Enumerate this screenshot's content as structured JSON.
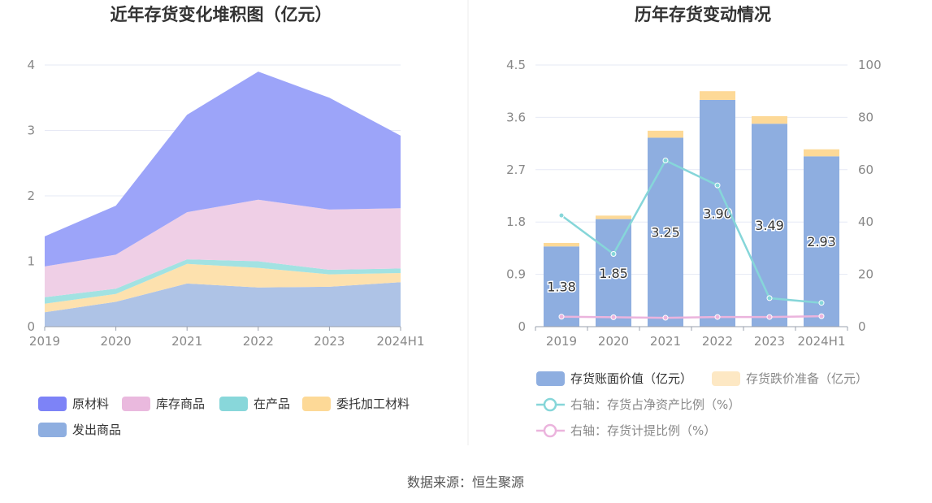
{
  "source": "数据来源：恒生聚源",
  "chart_data": [
    {
      "type": "area",
      "title": "近年存货变化堆积图（亿元）",
      "stacked": true,
      "categories": [
        "2019",
        "2020",
        "2021",
        "2022",
        "2023",
        "2024H1"
      ],
      "ylim": [
        0,
        4
      ],
      "yticks": [
        "0",
        "1",
        "2",
        "3",
        "4"
      ],
      "grid": true,
      "legend_position": "bottom",
      "series": [
        {
          "name": "发出商品",
          "color": "#aec3e6",
          "legend_color": "#8eaee0",
          "values": [
            0.22,
            0.38,
            0.66,
            0.6,
            0.61,
            0.68
          ]
        },
        {
          "name": "委托加工材料",
          "color": "#fde1ae",
          "legend_color": "#fdd997",
          "values": [
            0.13,
            0.12,
            0.3,
            0.3,
            0.19,
            0.14
          ]
        },
        {
          "name": "在产品",
          "color": "#a2e2e2",
          "legend_color": "#88d7da",
          "values": [
            0.1,
            0.08,
            0.07,
            0.1,
            0.07,
            0.07
          ]
        },
        {
          "name": "库存商品",
          "color": "#efcfe6",
          "legend_color": "#eab9de",
          "values": [
            0.47,
            0.52,
            0.72,
            0.94,
            0.92,
            0.92
          ]
        },
        {
          "name": "原材料",
          "color": "#9ca4f9",
          "legend_color": "#7d83f7",
          "values": [
            0.46,
            0.75,
            1.49,
            1.96,
            1.71,
            1.11
          ]
        }
      ]
    },
    {
      "type": "bar",
      "title": "历年存货变动情况",
      "stacked": true,
      "categories": [
        "2019",
        "2020",
        "2021",
        "2022",
        "2023",
        "2024H1"
      ],
      "ylim_left": [
        0,
        4.5
      ],
      "ylim_right": [
        0,
        100
      ],
      "yticks_left": [
        "0",
        "0.9",
        "1.8",
        "2.7",
        "3.6",
        "4.5"
      ],
      "yticks_right": [
        "0",
        "20",
        "40",
        "60",
        "80",
        "100"
      ],
      "grid": true,
      "legend_position": "bottom",
      "series": [
        {
          "name": "存货账面价值（亿元）",
          "kind": "bar",
          "axis": "left",
          "color": "#8eaee0",
          "values": [
            1.38,
            1.85,
            3.25,
            3.9,
            3.49,
            2.93
          ],
          "labels": [
            "1.38",
            "1.85",
            "3.25",
            "3.90",
            "3.49",
            "2.93"
          ]
        },
        {
          "name": "存货跌价准备（亿元）",
          "kind": "bar",
          "axis": "left",
          "color": "#fdd997",
          "legend_color": "#fde8c4",
          "values": [
            0.06,
            0.06,
            0.12,
            0.15,
            0.13,
            0.12
          ]
        },
        {
          "name": "右轴：存货占净资产比例（%）",
          "kind": "line",
          "axis": "right",
          "color": "#86d6d9",
          "values": [
            42.5,
            27.8,
            63.5,
            54.0,
            10.9,
            9.1
          ]
        },
        {
          "name": "右轴：存货计提比例（%）",
          "kind": "line",
          "axis": "right",
          "color": "#ebb4dd",
          "values": [
            3.8,
            3.6,
            3.4,
            3.7,
            3.7,
            4.0
          ]
        }
      ]
    }
  ]
}
